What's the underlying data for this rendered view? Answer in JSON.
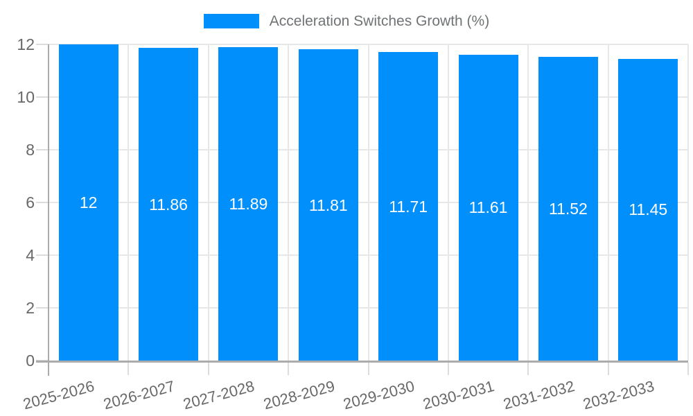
{
  "chart_data": {
    "type": "bar",
    "title": "Acceleration Switches Growth (%)",
    "legend": {
      "label": "Acceleration Switches Growth (%)",
      "position": "top"
    },
    "categories": [
      "2025-2026",
      "2026-2027",
      "2027-2028",
      "2028-2029",
      "2029-2030",
      "2030-2031",
      "2031-2032",
      "2032-2033"
    ],
    "series": [
      {
        "name": "Acceleration Switches Growth (%)",
        "values": [
          12,
          11.86,
          11.89,
          11.81,
          11.71,
          11.61,
          11.52,
          11.45
        ]
      }
    ],
    "value_labels": [
      "12",
      "11.86",
      "11.89",
      "11.81",
      "11.71",
      "11.61",
      "11.52",
      "11.45"
    ],
    "y_ticks": [
      0,
      2,
      4,
      6,
      8,
      10,
      12
    ],
    "ylim": [
      0,
      12
    ],
    "xlabel": "",
    "ylabel": "",
    "grid": true,
    "x_label_rotation_deg": -15,
    "colors": {
      "bar": "#008FFB",
      "grid": "#E7E7E7",
      "tick": "#DCDCDC",
      "axis": "#ABABAB",
      "axis_label": "#686868",
      "legend_label": "#707375",
      "value_label": "#FFFFFF"
    }
  }
}
